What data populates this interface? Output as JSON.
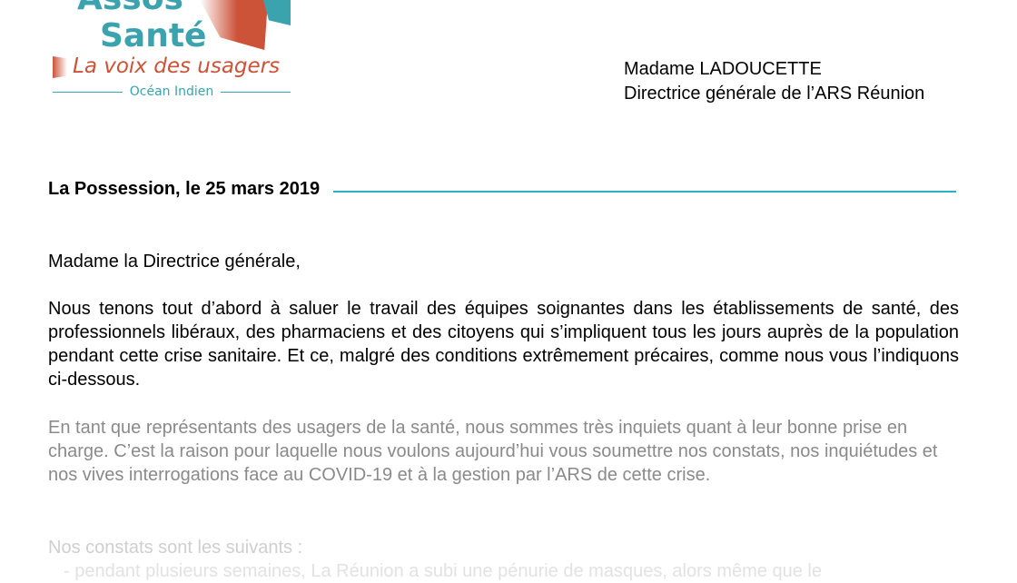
{
  "logo": {
    "title_line1": "Assos",
    "title_line2": "Santé",
    "tagline": "La voix des usagers",
    "region": "Océan Indien",
    "colors": {
      "teal": "#3aa3ad",
      "red": "#cc5238"
    }
  },
  "recipient": {
    "name": "Madame LADOUCETTE",
    "title": "Directrice générale de l’ARS Réunion"
  },
  "date_line": "La Possession, le 25 mars 2019",
  "salutation": "Madame la Directrice générale,",
  "paragraphs": [
    "Nous tenons tout d’abord à saluer le travail des équipes soignantes dans les établissements de santé, des professionnels libéraux,  des pharmaciens et des citoyens qui s’impliquent tous les jours auprès de la population pendant cette crise sanitaire. Et ce, malgré des conditions extrêmement précaires, comme nous vous l’indiquons ci-dessous.",
    "En tant que représentants des usagers de la santé, nous sommes très inquiets quant à leur bonne prise en charge. C’est la raison pour laquelle nous voulons aujourd’hui vous soumettre nos constats, nos inquiétudes et nos vives interrogations face au COVID-19 et à la gestion par l’ARS de cette crise.",
    "Nos constats sont les suivants :",
    "- pendant plusieurs semaines, La Réunion a subi une pénurie de masques, alors même que le"
  ]
}
